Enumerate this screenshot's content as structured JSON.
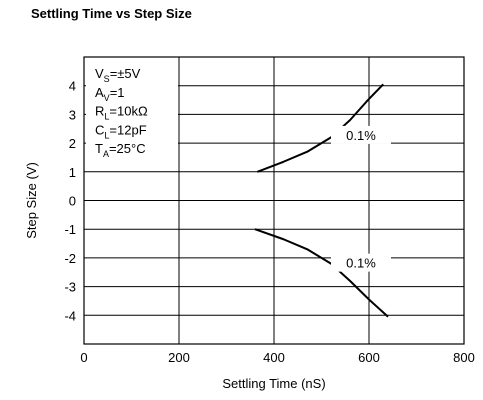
{
  "chart_data": {
    "type": "line",
    "title": "Settling Time vs Step Size",
    "xlabel": "Settling Time (nS)",
    "ylabel": "Step Size (V)",
    "xlim": [
      0,
      800
    ],
    "ylim": [
      -5,
      5
    ],
    "x_ticks": [
      0,
      200,
      400,
      600,
      800
    ],
    "y_ticks": [
      -4,
      -3,
      -2,
      -1,
      0,
      1,
      2,
      3,
      4
    ],
    "grid": true,
    "conditions": [
      {
        "main": "V",
        "sub": "S",
        "rest": "=±5V"
      },
      {
        "main": "A",
        "sub": "V",
        "rest": "=1"
      },
      {
        "main": "R",
        "sub": "L",
        "rest": "=10kΩ"
      },
      {
        "main": "C",
        "sub": "L",
        "rest": "=12pF"
      },
      {
        "main": "T",
        "sub": "A",
        "rest": "=25°C"
      }
    ],
    "series": [
      {
        "label": "0.1%",
        "x": [
          365,
          420,
          470,
          520,
          560,
          595,
          630
        ],
        "y": [
          1.0,
          1.35,
          1.7,
          2.2,
          2.8,
          3.45,
          4.05
        ]
      },
      {
        "label": "0.1%",
        "x": [
          360,
          420,
          470,
          520,
          560,
          600,
          640
        ],
        "y": [
          -1.0,
          -1.35,
          -1.7,
          -2.2,
          -2.8,
          -3.45,
          -4.05
        ]
      }
    ]
  }
}
